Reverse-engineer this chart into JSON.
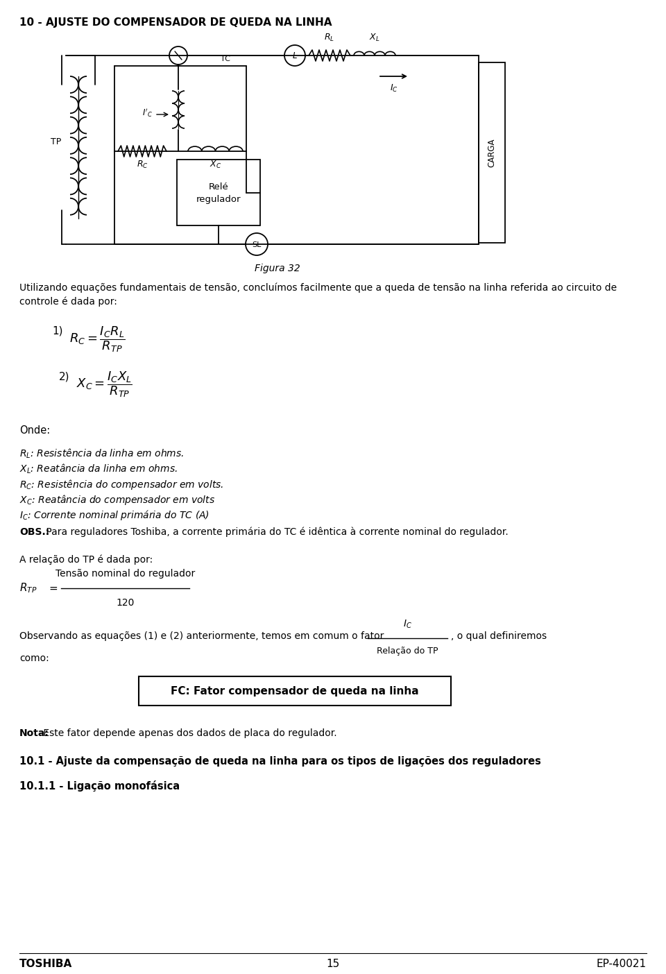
{
  "title": "10 - AJUSTE DO COMPENSADOR DE QUEDA NA LINHA",
  "figura_label": "Figura 32",
  "body_line1": "Utilizando equações fundamentais de tensão, concluímos facilmente que a queda de tensão na linha referida ao circuito de",
  "body_line2": "controle é dada por:",
  "eq1_num": "1)",
  "eq1": "$R_C = \\dfrac{I_C R_L}{R_{TP}}$",
  "eq2_num": "2)",
  "eq2": "$X_C = \\dfrac{I_C X_L}{R_{TP}}$",
  "onde_label": "Onde:",
  "def1": "$R_L$: Resistência da linha em ohms.",
  "def2": "$X_L$: Reatância da linha em ohms.",
  "def3": "$R_C$: Resistência do compensador em volts.",
  "def4": "$X_C$: Reatância do compensador em volts",
  "def5": "$I_C$: Corrente nominal primária do TC (A)",
  "obs_bold": "OBS.:",
  "obs_text": " Para reguladores Toshiba, a corrente primária do TC é idêntica à corrente nominal do regulador.",
  "relacao_label": "A relação do TP é dada por:",
  "rtp_numerator": "Tensão nominal do regulador",
  "rtp_denominator": "120",
  "obs2_part1": "Observando as equações (1) e (2) anteriormente, temos em comum o fator",
  "obs2_frac_num": "I C",
  "obs2_frac_den": "Relação do TP",
  "obs2_part2": ", o qual definiremos",
  "obs2_line2": "como:",
  "fc_box_text": "FC: Fator compensador de queda na linha",
  "nota_bold": "Nota:",
  "nota_text": " Este fator depende apenas dos dados de placa do regulador.",
  "section_101": "10.1 - Ajuste da compensação de queda na linha para os tipos de ligações dos reguladores",
  "section_1011": "10.1.1 - Ligação monofásica",
  "footer_left": "TOSHIBA",
  "footer_center": "15",
  "footer_right": "EP-40021",
  "bg_color": "#ffffff"
}
